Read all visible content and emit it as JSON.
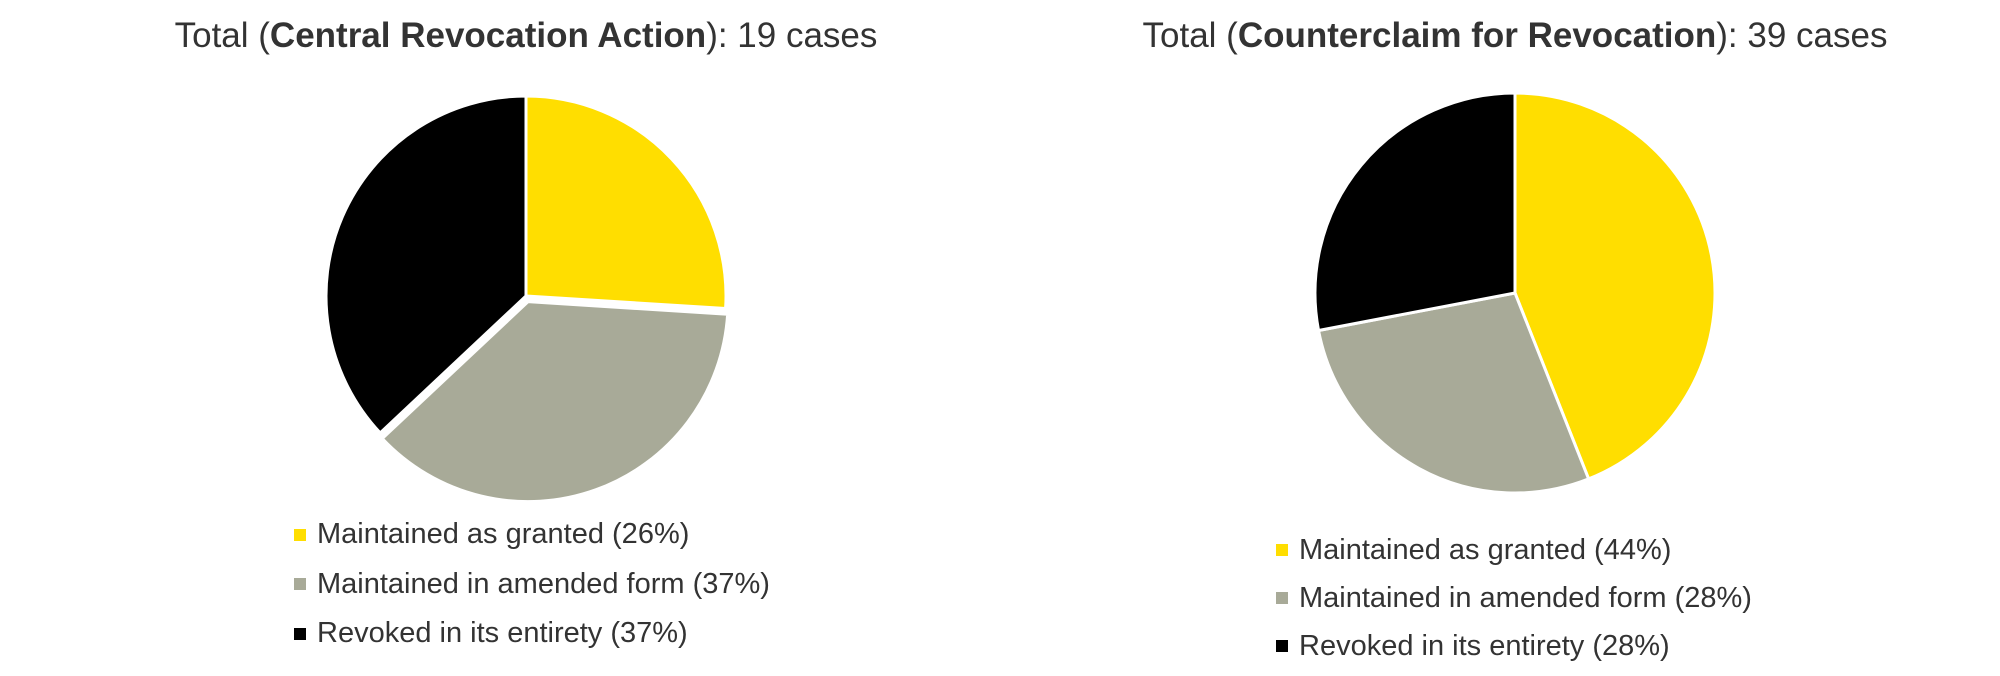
{
  "chart_data": [
    {
      "type": "pie",
      "title_prefix": "Total (",
      "title_bold": "Central Revocation Action",
      "title_suffix": "): 19 cases",
      "slices": [
        {
          "label": "Maintained as granted (26%)",
          "value": 26,
          "color": "#FFDE00"
        },
        {
          "label": "Maintained in amended form (37%)",
          "value": 37,
          "color": "#A8AA98"
        },
        {
          "label": "Revoked in its entirety (37%)",
          "value": 37,
          "color": "#000000"
        }
      ],
      "exploded_slice": "Maintained in amended form (37%)",
      "legend_position": "bottom"
    },
    {
      "type": "pie",
      "title_prefix": "Total (",
      "title_bold": "Counterclaim for Revocation",
      "title_suffix": "): 39 cases",
      "slices": [
        {
          "label": "Maintained as granted (44%)",
          "value": 44,
          "color": "#FFDE00"
        },
        {
          "label": "Maintained in amended form (28%)",
          "value": 28,
          "color": "#A8AA98"
        },
        {
          "label": "Revoked in its entirety (28%)",
          "value": 28,
          "color": "#000000"
        }
      ],
      "legend_position": "bottom"
    }
  ]
}
